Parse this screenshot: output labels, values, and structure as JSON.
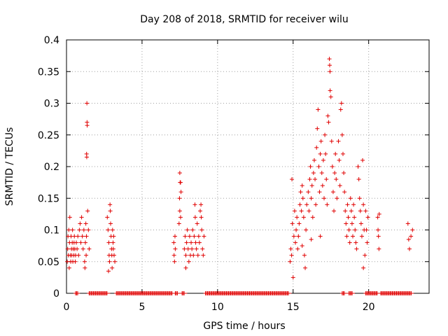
{
  "chart_data": {
    "type": "scatter",
    "title": "Day 208 of 2018, SRMTID for receiver wilu",
    "xlabel": "GPS time / hours",
    "ylabel": "SRMTID / TECUs",
    "xlim": [
      0,
      24
    ],
    "ylim": [
      0,
      0.4
    ],
    "x_ticks": [
      0,
      5,
      10,
      15,
      20
    ],
    "x_tick_labels": [
      "0",
      "5",
      "10",
      "15",
      "20"
    ],
    "y_ticks": [
      0,
      0.05,
      0.1,
      0.15,
      0.2,
      0.25,
      0.3,
      0.35,
      0.4
    ],
    "y_tick_labels": [
      "0",
      "0.05",
      "0.1",
      "0.15",
      "0.2",
      "0.25",
      "0.3",
      "0.35",
      "0.4"
    ],
    "grid": true,
    "marker": "+",
    "color": "#e00000",
    "series": [
      {
        "name": "SRMTID",
        "points": [
          [
            0.05,
            0.05
          ],
          [
            0.08,
            0.07
          ],
          [
            0.1,
            0.09
          ],
          [
            0.12,
            0.06
          ],
          [
            0.15,
            0.1
          ],
          [
            0.18,
            0.04
          ],
          [
            0.2,
            0.08
          ],
          [
            0.22,
            0.12
          ],
          [
            0.25,
            0.06
          ],
          [
            0.28,
            0.05
          ],
          [
            0.3,
            0.09
          ],
          [
            0.33,
            0.07
          ],
          [
            0.35,
            0.06
          ],
          [
            0.38,
            0.08
          ],
          [
            0.4,
            0.1
          ],
          [
            0.42,
            0.05
          ],
          [
            0.45,
            0.07
          ],
          [
            0.48,
            0.06
          ],
          [
            0.5,
            0.08
          ],
          [
            0.52,
            0.09
          ],
          [
            0.55,
            0.07
          ],
          [
            0.58,
            0.05
          ],
          [
            0.6,
            0.06
          ],
          [
            0.65,
            0.08
          ],
          [
            0.7,
            0.07
          ],
          [
            0.75,
            0.09
          ],
          [
            0.8,
            0.06
          ],
          [
            0.85,
            0.1
          ],
          [
            0.9,
            0.11
          ],
          [
            0.95,
            0.08
          ],
          [
            1.0,
            0.12
          ],
          [
            1.05,
            0.09
          ],
          [
            1.1,
            0.07
          ],
          [
            1.15,
            0.1
          ],
          [
            1.2,
            0.05
          ],
          [
            1.22,
            0.04
          ],
          [
            1.25,
            0.08
          ],
          [
            1.28,
            0.11
          ],
          [
            1.3,
            0.06
          ],
          [
            1.32,
            0.09
          ],
          [
            1.35,
            0.3
          ],
          [
            1.36,
            0.27
          ],
          [
            1.37,
            0.265
          ],
          [
            1.33,
            0.22
          ],
          [
            1.34,
            0.215
          ],
          [
            1.4,
            0.13
          ],
          [
            1.45,
            0.1
          ],
          [
            1.5,
            0.07
          ],
          [
            2.7,
            0.12
          ],
          [
            2.75,
            0.1
          ],
          [
            2.8,
            0.08
          ],
          [
            2.82,
            0.06
          ],
          [
            2.85,
            0.05
          ],
          [
            2.88,
            0.14
          ],
          [
            2.9,
            0.13
          ],
          [
            2.92,
            0.11
          ],
          [
            2.95,
            0.09
          ],
          [
            2.98,
            0.07
          ],
          [
            3.0,
            0.06
          ],
          [
            3.02,
            0.04
          ],
          [
            3.05,
            0.1
          ],
          [
            3.08,
            0.08
          ],
          [
            3.1,
            0.07
          ],
          [
            3.12,
            0.09
          ],
          [
            3.15,
            0.06
          ],
          [
            3.2,
            0.05
          ],
          [
            2.78,
            0.035
          ],
          [
            7.1,
            0.08
          ],
          [
            7.12,
            0.06
          ],
          [
            7.15,
            0.05
          ],
          [
            7.18,
            0.09
          ],
          [
            7.2,
            0.07
          ],
          [
            7.5,
            0.19
          ],
          [
            7.52,
            0.175
          ],
          [
            7.55,
            0.175
          ],
          [
            7.58,
            0.16
          ],
          [
            7.48,
            0.15
          ],
          [
            7.5,
            0.13
          ],
          [
            7.55,
            0.12
          ],
          [
            7.45,
            0.11
          ],
          [
            7.8,
            0.07
          ],
          [
            7.85,
            0.09
          ],
          [
            7.9,
            0.06
          ],
          [
            7.95,
            0.08
          ],
          [
            8.0,
            0.1
          ],
          [
            8.05,
            0.07
          ],
          [
            8.1,
            0.05
          ],
          [
            8.15,
            0.09
          ],
          [
            8.2,
            0.06
          ],
          [
            8.25,
            0.08
          ],
          [
            8.3,
            0.07
          ],
          [
            8.35,
            0.1
          ],
          [
            8.4,
            0.06
          ],
          [
            8.45,
            0.09
          ],
          [
            8.5,
            0.14
          ],
          [
            8.52,
            0.12
          ],
          [
            8.55,
            0.08
          ],
          [
            8.6,
            0.07
          ],
          [
            8.65,
            0.11
          ],
          [
            8.7,
            0.06
          ],
          [
            8.75,
            0.09
          ],
          [
            8.8,
            0.08
          ],
          [
            8.85,
            0.13
          ],
          [
            8.9,
            0.14
          ],
          [
            8.92,
            0.12
          ],
          [
            8.95,
            0.1
          ],
          [
            9.0,
            0.07
          ],
          [
            9.05,
            0.06
          ],
          [
            9.1,
            0.09
          ],
          [
            7.9,
            0.04
          ],
          [
            14.8,
            0.05
          ],
          [
            14.85,
            0.07
          ],
          [
            14.9,
            0.06
          ],
          [
            14.92,
            0.18
          ],
          [
            14.95,
            0.11
          ],
          [
            15.0,
            0.025
          ],
          [
            15.05,
            0.09
          ],
          [
            15.1,
            0.13
          ],
          [
            15.15,
            0.08
          ],
          [
            15.2,
            0.1
          ],
          [
            15.25,
            0.12
          ],
          [
            15.3,
            0.07
          ],
          [
            15.35,
            0.09
          ],
          [
            15.4,
            0.11
          ],
          [
            15.45,
            0.14
          ],
          [
            15.5,
            0.16
          ],
          [
            15.55,
            0.13
          ],
          [
            15.6,
            0.17
          ],
          [
            15.65,
            0.15
          ],
          [
            15.7,
            0.12
          ],
          [
            15.75,
            0.06
          ],
          [
            15.8,
            0.04
          ],
          [
            15.85,
            0.1
          ],
          [
            15.9,
            0.14
          ],
          [
            16.0,
            0.16
          ],
          [
            16.05,
            0.13
          ],
          [
            16.1,
            0.18
          ],
          [
            16.15,
            0.2
          ],
          [
            16.2,
            0.15
          ],
          [
            16.25,
            0.17
          ],
          [
            16.3,
            0.12
          ],
          [
            16.35,
            0.19
          ],
          [
            16.4,
            0.21
          ],
          [
            16.45,
            0.18
          ],
          [
            16.5,
            0.14
          ],
          [
            16.55,
            0.23
          ],
          [
            16.6,
            0.26
          ],
          [
            16.65,
            0.29
          ],
          [
            16.7,
            0.2
          ],
          [
            16.75,
            0.16
          ],
          [
            16.8,
            0.22
          ],
          [
            16.85,
            0.24
          ],
          [
            16.9,
            0.19
          ],
          [
            16.95,
            0.17
          ],
          [
            17.0,
            0.21
          ],
          [
            17.05,
            0.15
          ],
          [
            17.1,
            0.25
          ],
          [
            17.15,
            0.22
          ],
          [
            17.2,
            0.18
          ],
          [
            17.25,
            0.14
          ],
          [
            17.3,
            0.28
          ],
          [
            17.35,
            0.27
          ],
          [
            17.4,
            0.37
          ],
          [
            17.42,
            0.36
          ],
          [
            17.44,
            0.35
          ],
          [
            17.45,
            0.32
          ],
          [
            17.5,
            0.31
          ],
          [
            17.55,
            0.24
          ],
          [
            17.6,
            0.2
          ],
          [
            17.65,
            0.16
          ],
          [
            17.7,
            0.13
          ],
          [
            17.75,
            0.19
          ],
          [
            17.8,
            0.22
          ],
          [
            17.85,
            0.18
          ],
          [
            17.9,
            0.15
          ],
          [
            18.0,
            0.24
          ],
          [
            18.05,
            0.21
          ],
          [
            18.1,
            0.17
          ],
          [
            18.15,
            0.29
          ],
          [
            18.2,
            0.3
          ],
          [
            18.25,
            0.25
          ],
          [
            18.3,
            0.22
          ],
          [
            18.35,
            0.19
          ],
          [
            18.4,
            0.16
          ],
          [
            18.45,
            0.13
          ],
          [
            18.5,
            0.11
          ],
          [
            18.55,
            0.09
          ],
          [
            18.6,
            0.14
          ],
          [
            18.65,
            0.12
          ],
          [
            18.7,
            0.1
          ],
          [
            18.75,
            0.08
          ],
          [
            18.8,
            0.15
          ],
          [
            18.85,
            0.13
          ],
          [
            18.9,
            0.11
          ],
          [
            18.95,
            0.09
          ],
          [
            19.0,
            0.14
          ],
          [
            19.05,
            0.12
          ],
          [
            19.1,
            0.1
          ],
          [
            19.15,
            0.08
          ],
          [
            19.2,
            0.07
          ],
          [
            19.3,
            0.2
          ],
          [
            19.35,
            0.18
          ],
          [
            19.4,
            0.15
          ],
          [
            19.45,
            0.13
          ],
          [
            19.5,
            0.11
          ],
          [
            19.55,
            0.09
          ],
          [
            19.6,
            0.21
          ],
          [
            19.65,
            0.14
          ],
          [
            19.7,
            0.1
          ],
          [
            19.75,
            0.06
          ],
          [
            19.8,
            0.13
          ],
          [
            19.85,
            0.1
          ],
          [
            19.9,
            0.08
          ],
          [
            19.95,
            0.12
          ],
          [
            19.65,
            0.04
          ],
          [
            16.2,
            0.085
          ],
          [
            15.6,
            0.075
          ],
          [
            16.8,
            0.09
          ],
          [
            20.6,
            0.12
          ],
          [
            20.62,
            0.1
          ],
          [
            20.65,
            0.09
          ],
          [
            20.68,
            0.07
          ],
          [
            20.7,
            0.125
          ],
          [
            22.6,
            0.11
          ],
          [
            22.65,
            0.085
          ],
          [
            22.7,
            0.07
          ],
          [
            22.8,
            0.09
          ],
          [
            22.9,
            0.1
          ]
        ]
      }
    ],
    "zero_segments": [
      [
        0.6,
        0.75
      ],
      [
        1.5,
        2.75
      ],
      [
        3.3,
        7.0
      ],
      [
        7.2,
        7.4
      ],
      [
        7.65,
        7.85
      ],
      [
        9.2,
        14.75
      ],
      [
        18.25,
        18.45
      ],
      [
        18.7,
        18.95
      ],
      [
        19.8,
        20.6
      ],
      [
        20.8,
        22.85
      ]
    ]
  }
}
